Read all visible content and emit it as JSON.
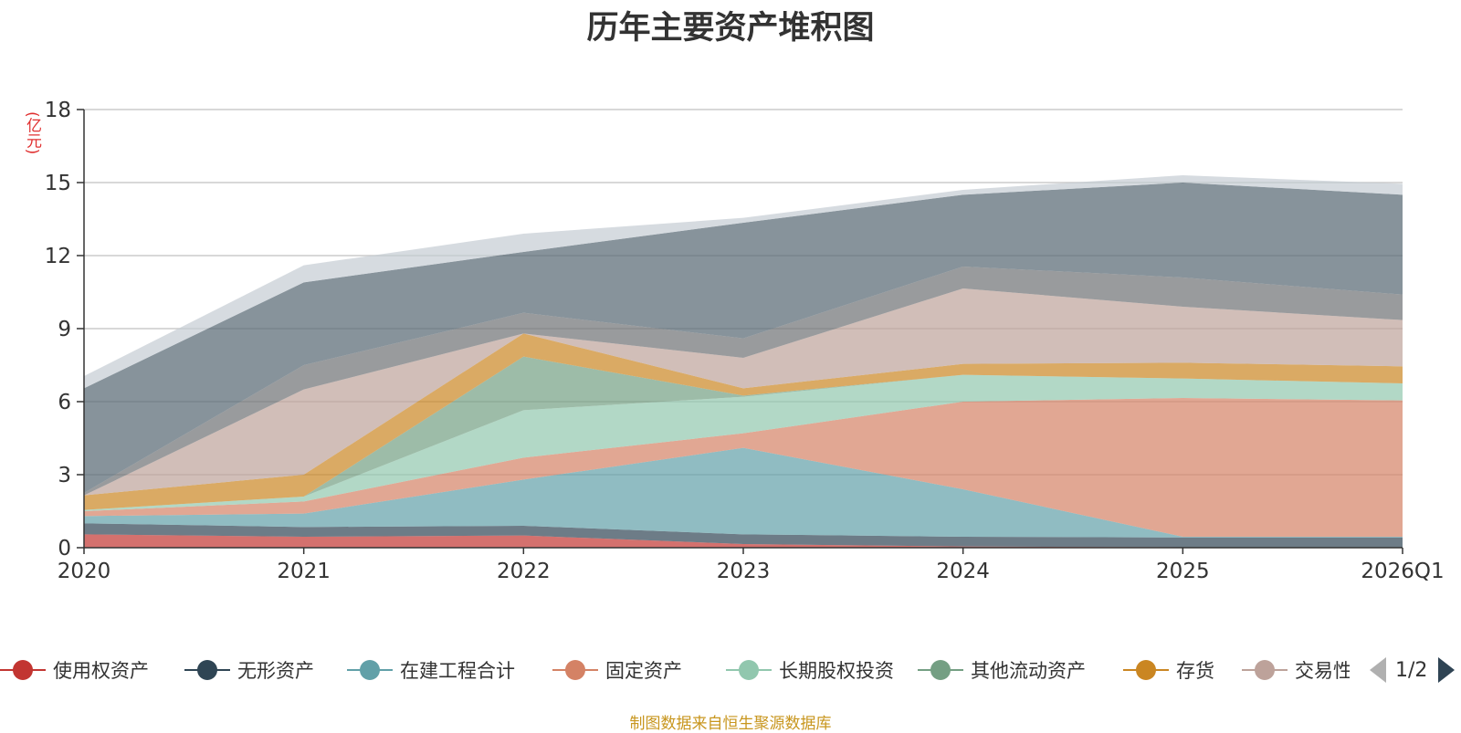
{
  "chart_data": {
    "type": "area",
    "stacked": true,
    "title": "历年主要资产堆积图",
    "unit_label": "(亿元)",
    "categories": [
      "2020",
      "2021",
      "2022",
      "2023",
      "2024",
      "2025",
      "2026Q1"
    ],
    "ylim": [
      0,
      18
    ],
    "yticks": [
      0,
      3,
      6,
      9,
      12,
      15,
      18
    ],
    "grid": true,
    "legend_position": "bottom",
    "series": [
      {
        "name": "使用权资产",
        "color": "#c23531",
        "values": [
          0.55,
          0.45,
          0.5,
          0.15,
          0.05,
          0.02,
          0.02
        ]
      },
      {
        "name": "无形资产",
        "color": "#2f4554",
        "values": [
          0.45,
          0.4,
          0.4,
          0.4,
          0.4,
          0.4,
          0.4
        ]
      },
      {
        "name": "在建工程合计",
        "color": "#61a0a8",
        "values": [
          0.3,
          0.55,
          1.9,
          3.55,
          1.95,
          0.03,
          0.03
        ]
      },
      {
        "name": "固定资产",
        "color": "#d48265",
        "values": [
          0.2,
          0.5,
          0.9,
          0.6,
          3.6,
          5.7,
          5.6
        ]
      },
      {
        "name": "长期股权投资",
        "color": "#91c7ae",
        "values": [
          0.05,
          0.2,
          1.95,
          1.5,
          1.1,
          0.8,
          0.7
        ]
      },
      {
        "name": "其他流动资产",
        "color": "#749f83",
        "values": [
          0.0,
          0.0,
          2.2,
          0.05,
          0.0,
          0.0,
          0.0
        ]
      },
      {
        "name": "存货",
        "color": "#ca8622",
        "values": [
          0.6,
          0.9,
          0.95,
          0.3,
          0.45,
          0.65,
          0.7
        ]
      },
      {
        "name": "交易性金融资产",
        "color": "#bda29a",
        "values": [
          0.0,
          3.5,
          0.0,
          1.25,
          3.1,
          2.3,
          1.9
        ]
      },
      {
        "name": "",
        "color": "#6e7074",
        "values": [
          0.1,
          1.0,
          0.85,
          0.8,
          0.9,
          1.2,
          1.05
        ]
      },
      {
        "name": "",
        "color": "#546570",
        "values": [
          4.3,
          3.4,
          2.5,
          4.75,
          2.95,
          3.9,
          4.1
        ]
      },
      {
        "name": "",
        "color": "#c4ccd3",
        "values": [
          0.5,
          0.7,
          0.75,
          0.2,
          0.2,
          0.3,
          0.45
        ]
      }
    ]
  },
  "legend": {
    "items": [
      "使用权资产",
      "无形资产",
      "在建工程合计",
      "固定资产",
      "长期股权投资",
      "其他流动资产",
      "存货",
      "交易性金融资产"
    ],
    "page": "1/2"
  },
  "source_note": "制图数据来自恒生聚源数据库"
}
